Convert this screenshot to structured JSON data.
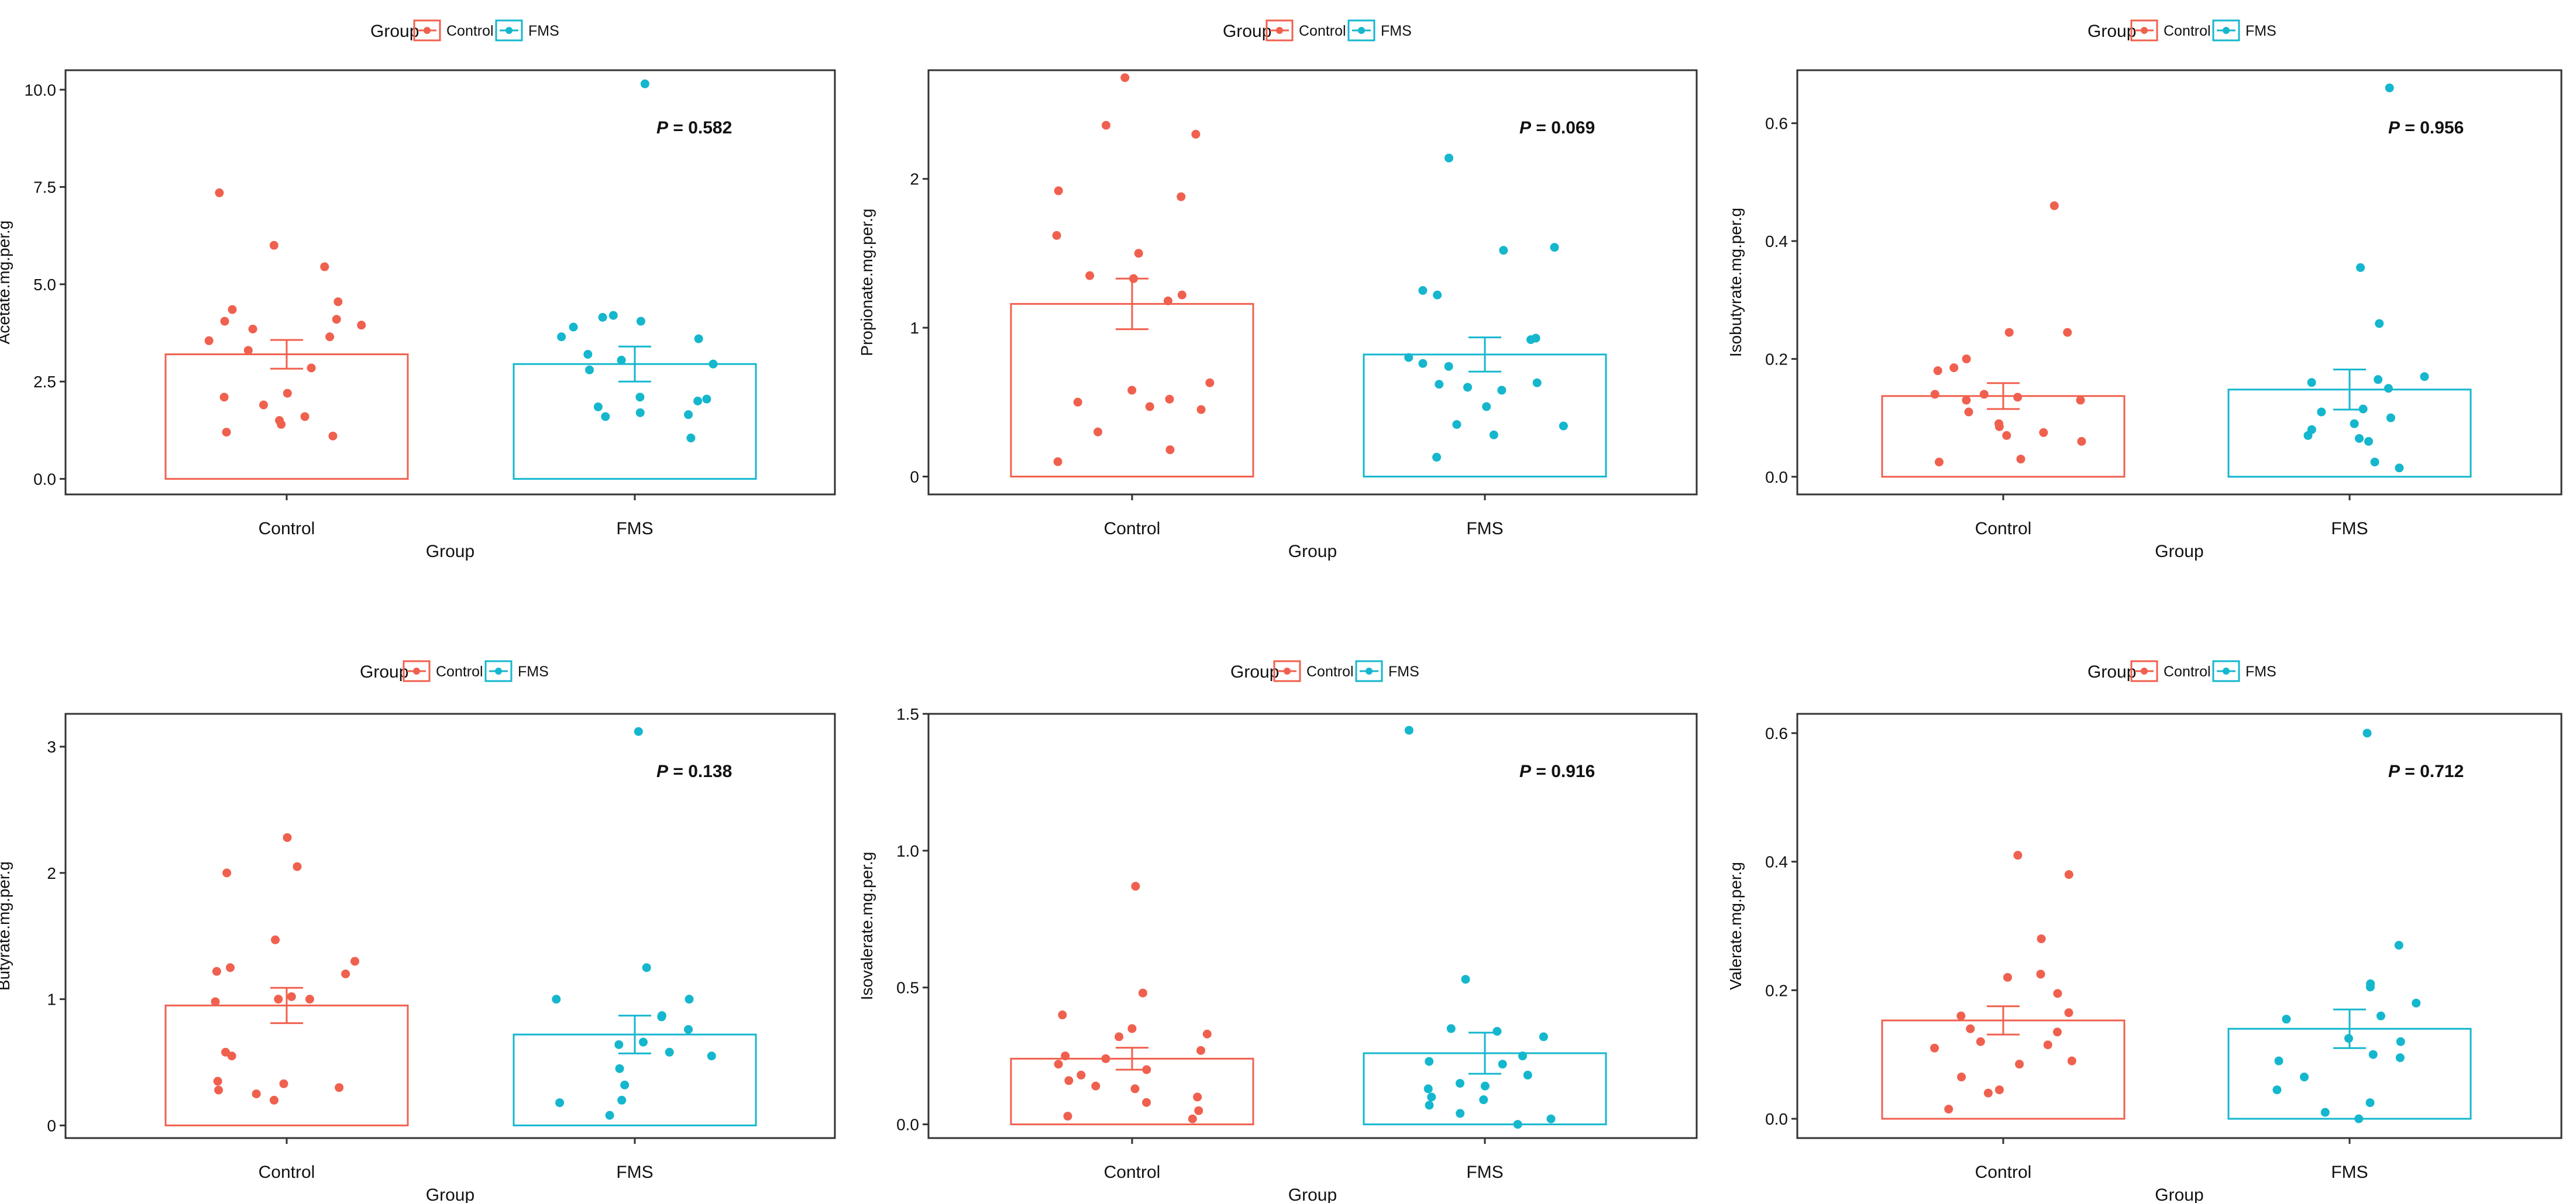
{
  "colors": {
    "control": "#f0604e",
    "fms": "#14b7cd",
    "axis": "#333333",
    "text": "#111111"
  },
  "legend": {
    "title": "Group",
    "entries": [
      "Control",
      "FMS"
    ]
  },
  "chart_data": [
    {
      "type": "bar",
      "ylabel": "Acetate.mg.per.g",
      "xlabel": "Group",
      "categories": [
        "Control",
        "FMS"
      ],
      "ylim": [
        -0.4,
        10.5
      ],
      "yticks": [
        0,
        2.5,
        5,
        7.5,
        10
      ],
      "ytick_labels": [
        "0.0",
        "2.5",
        "5.0",
        "7.5",
        "10.0"
      ],
      "means": [
        3.2,
        2.95
      ],
      "sem": [
        0.37,
        0.45
      ],
      "p_label": "P",
      "p_text": " = 0.582",
      "points": [
        [
          5.45,
          7.35,
          6.0,
          4.55,
          4.35,
          4.1,
          4.05,
          3.95,
          3.85,
          3.65,
          3.55,
          3.3,
          2.85,
          2.2,
          2.1,
          1.9,
          1.6,
          1.5,
          1.4,
          1.2,
          1.1
        ],
        [
          10.15,
          4.2,
          4.15,
          4.05,
          3.9,
          3.65,
          3.6,
          3.2,
          3.05,
          2.95,
          2.8,
          2.1,
          2.05,
          2.0,
          1.85,
          1.7,
          1.65,
          1.6,
          1.05
        ]
      ]
    },
    {
      "type": "bar",
      "ylabel": "Propionate.mg.per.g",
      "xlabel": "Group",
      "categories": [
        "Control",
        "FMS"
      ],
      "ylim": [
        -0.12,
        2.73
      ],
      "yticks": [
        0,
        1,
        2
      ],
      "ytick_labels": [
        "0",
        "1",
        "2"
      ],
      "means": [
        1.16,
        0.82
      ],
      "sem": [
        0.17,
        0.115
      ],
      "p_label": "P",
      "p_text": " = 0.069",
      "points": [
        [
          2.68,
          2.36,
          2.3,
          1.92,
          1.88,
          1.62,
          1.5,
          1.35,
          1.33,
          1.22,
          1.18,
          0.63,
          0.58,
          0.52,
          0.5,
          0.47,
          0.45,
          0.3,
          0.18,
          0.1
        ],
        [
          2.14,
          1.54,
          1.52,
          1.25,
          1.22,
          0.93,
          0.92,
          0.8,
          0.76,
          0.74,
          0.63,
          0.62,
          0.6,
          0.58,
          0.47,
          0.35,
          0.34,
          0.28,
          0.13
        ]
      ]
    },
    {
      "type": "bar",
      "ylabel": "Isobutyrate.mg.per.g",
      "xlabel": "Group",
      "categories": [
        "Control",
        "FMS"
      ],
      "ylim": [
        -0.03,
        0.69
      ],
      "yticks": [
        0,
        0.2,
        0.4,
        0.6
      ],
      "ytick_labels": [
        "0.0",
        "0.2",
        "0.4",
        "0.6"
      ],
      "means": [
        0.137,
        0.148
      ],
      "sem": [
        0.022,
        0.034
      ],
      "p_label": "P",
      "p_text": " = 0.956",
      "points": [
        [
          0.46,
          0.245,
          0.245,
          0.2,
          0.185,
          0.18,
          0.14,
          0.14,
          0.135,
          0.13,
          0.13,
          0.11,
          0.09,
          0.085,
          0.075,
          0.07,
          0.06,
          0.03,
          0.025
        ],
        [
          0.66,
          0.355,
          0.26,
          0.17,
          0.165,
          0.16,
          0.15,
          0.115,
          0.11,
          0.1,
          0.09,
          0.08,
          0.07,
          0.065,
          0.06,
          0.025,
          0.015
        ]
      ]
    },
    {
      "type": "bar",
      "ylabel": "Butyrate.mg.per.g",
      "xlabel": "Group",
      "categories": [
        "Control",
        "FMS"
      ],
      "ylim": [
        -0.1,
        3.26
      ],
      "yticks": [
        0,
        1,
        2,
        3
      ],
      "ytick_labels": [
        "0",
        "1",
        "2",
        "3"
      ],
      "means": [
        0.95,
        0.72
      ],
      "sem": [
        0.14,
        0.15
      ],
      "p_label": "P",
      "p_text": " = 0.138",
      "points": [
        [
          2.28,
          2.05,
          2.0,
          1.47,
          1.3,
          1.25,
          1.22,
          1.2,
          1.02,
          1.0,
          1.0,
          0.98,
          0.58,
          0.55,
          0.35,
          0.33,
          0.3,
          0.28,
          0.25,
          0.2
        ],
        [
          3.12,
          1.25,
          1.0,
          1.0,
          0.87,
          0.86,
          0.76,
          0.66,
          0.64,
          0.58,
          0.55,
          0.45,
          0.32,
          0.2,
          0.18,
          0.08
        ]
      ]
    },
    {
      "type": "bar",
      "ylabel": "Isovalerate.mg.per.g",
      "xlabel": "Group",
      "categories": [
        "Control",
        "FMS"
      ],
      "ylim": [
        -0.05,
        1.5
      ],
      "yticks": [
        0,
        0.5,
        1.0,
        1.5
      ],
      "ytick_labels": [
        "0.0",
        "0.5",
        "1.0",
        "1.5"
      ],
      "means": [
        0.24,
        0.26
      ],
      "sem": [
        0.04,
        0.075
      ],
      "p_label": "P",
      "p_text": " = 0.916",
      "points": [
        [
          0.87,
          0.48,
          0.4,
          0.35,
          0.33,
          0.32,
          0.27,
          0.25,
          0.24,
          0.22,
          0.2,
          0.18,
          0.16,
          0.14,
          0.13,
          0.1,
          0.08,
          0.05,
          0.03,
          0.02
        ],
        [
          1.44,
          0.53,
          0.35,
          0.34,
          0.32,
          0.25,
          0.23,
          0.22,
          0.18,
          0.15,
          0.14,
          0.13,
          0.1,
          0.09,
          0.07,
          0.04,
          0.02,
          0.0
        ]
      ]
    },
    {
      "type": "bar",
      "ylabel": "Valerate.mg.per.g",
      "xlabel": "Group",
      "categories": [
        "Control",
        "FMS"
      ],
      "ylim": [
        -0.03,
        0.63
      ],
      "yticks": [
        0,
        0.2,
        0.4,
        0.6
      ],
      "ytick_labels": [
        "0.0",
        "0.2",
        "0.4",
        "0.6"
      ],
      "means": [
        0.153,
        0.14
      ],
      "sem": [
        0.022,
        0.03
      ],
      "p_label": "P",
      "p_text": " = 0.712",
      "points": [
        [
          0.41,
          0.38,
          0.28,
          0.225,
          0.22,
          0.195,
          0.165,
          0.16,
          0.14,
          0.135,
          0.12,
          0.115,
          0.11,
          0.09,
          0.085,
          0.065,
          0.045,
          0.04,
          0.015
        ],
        [
          0.6,
          0.27,
          0.21,
          0.205,
          0.18,
          0.16,
          0.155,
          0.125,
          0.12,
          0.1,
          0.095,
          0.09,
          0.065,
          0.045,
          0.025,
          0.01,
          0.0
        ]
      ]
    }
  ]
}
